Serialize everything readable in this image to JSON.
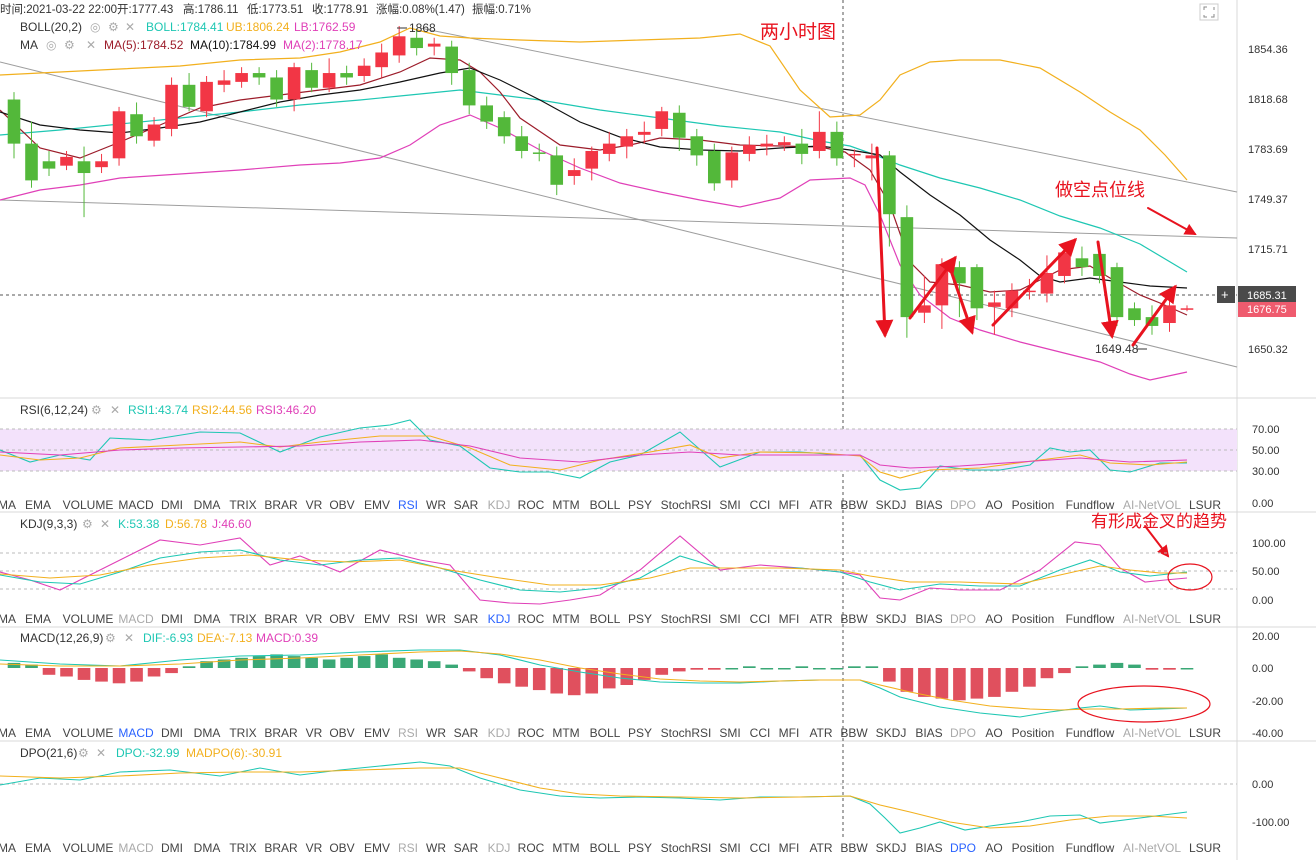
{
  "info_bar": {
    "time": "时间:2021-03-22 22:00",
    "open": "开:1777.43",
    "high": "高:1786.11",
    "low": "低:1773.51",
    "close": "收:1778.91",
    "change": "涨幅:0.08%(1.47)",
    "amplitude": "振幅:0.71%"
  },
  "colors": {
    "up": "#f23645",
    "down": "#53b83a",
    "boll_mid": "#1ec7b3",
    "boll_upper": "#f2b01e",
    "boll_lower": "#e040b8",
    "ma5": "#9c1c2a",
    "ma10": "#111111",
    "rsi_band": "#f3e2fb",
    "price_tag": "#ef5b6e",
    "annot": "#e8131f"
  },
  "main_panel": {
    "boll_title": "BOLL(20,2)",
    "boll_mid": "BOLL:1784.41",
    "boll_up": "UB:1806.24",
    "boll_low": "LB:1762.59",
    "ma_title": "MA",
    "ma5": "MA(5):1784.52",
    "ma10": "MA(10):1784.99",
    "ma2": "MA(2):1778.17",
    "high_label": "1868",
    "low_label": "1649.48",
    "price_axis": [
      "1854.36",
      "1818.68",
      "1783.69",
      "1749.37",
      "1715.71",
      "1650.32"
    ],
    "crosshair_price": "1685.31",
    "last_price": "1676.75",
    "annotation_title": "两小时图",
    "annotation_short": "做空点位线",
    "annotation_kdj": "有形成金叉的趋势"
  },
  "rsi_panel": {
    "title": "RSI(6,12,24)",
    "r1": "RSI1:43.74",
    "r2": "RSI2:44.56",
    "r3": "RSI3:46.20",
    "axis": [
      "70.00",
      "50.00",
      "30.00",
      "0.00"
    ]
  },
  "kdj_panel": {
    "title": "KDJ(9,3,3)",
    "k": "K:53.38",
    "d": "D:56.78",
    "j": "J:46.60",
    "axis": [
      "100.00",
      "50.00",
      "0.00"
    ]
  },
  "macd_panel": {
    "title": "MACD(12,26,9)",
    "dif": "DIF:-6.93",
    "dea": "DEA:-7.13",
    "macd": "MACD:0.39",
    "axis": [
      "20.00",
      "0.00",
      "-20.00",
      "-40.00"
    ]
  },
  "dpo_panel": {
    "title": "DPO(21,6)",
    "dpo": "DPO:-32.99",
    "madpo": "MADPO(6):-30.91",
    "axis": [
      "0.00",
      "-100.00"
    ]
  },
  "indicator_tabs": [
    "MA",
    "EMA",
    "VOLUME",
    "MACD",
    "DMI",
    "DMA",
    "TRIX",
    "BRAR",
    "VR",
    "OBV",
    "EMV",
    "RSI",
    "WR",
    "SAR",
    "KDJ",
    "ROC",
    "MTM",
    "BOLL",
    "PSY",
    "StochRSI",
    "SMI",
    "CCI",
    "MFI",
    "ATR",
    "BBW",
    "SKDJ",
    "BIAS",
    "DPO",
    "AO",
    "Position",
    "Fundflow",
    "AI-NetVOL",
    "LSUR"
  ],
  "tab_rows": [
    {
      "active": "RSI",
      "dim": [
        "KDJ",
        "DPO",
        "AI-NetVOL"
      ]
    },
    {
      "active": "KDJ",
      "dim": [
        "MACD",
        "DPO",
        "AI-NetVOL"
      ]
    },
    {
      "active": "MACD",
      "dim": [
        "RSI",
        "KDJ",
        "DPO",
        "AI-NetVOL"
      ]
    },
    {
      "active": "DPO",
      "dim": [
        "MACD",
        "RSI",
        "KDJ",
        "AI-NetVOL"
      ]
    }
  ],
  "chart_data": {
    "type": "candlestick",
    "title": "两小时图",
    "y_axis_ticks": [
      1854.36,
      1818.68,
      1783.69,
      1749.37,
      1715.71,
      1650.32
    ],
    "ylim": [
      1633,
      1888
    ],
    "candles": [
      [
        1820,
        1790,
        1825,
        1780
      ],
      [
        1790,
        1765,
        1805,
        1760
      ],
      [
        1778,
        1773,
        1785,
        1768
      ],
      [
        1775,
        1781,
        1785,
        1772
      ],
      [
        1778,
        1770,
        1788,
        1740
      ],
      [
        1774,
        1778,
        1783,
        1770
      ],
      [
        1780,
        1812,
        1815,
        1775
      ],
      [
        1810,
        1795,
        1818,
        1790
      ],
      [
        1792,
        1803,
        1808,
        1788
      ],
      [
        1800,
        1830,
        1835,
        1795
      ],
      [
        1830,
        1815,
        1838,
        1812
      ],
      [
        1812,
        1832,
        1836,
        1808
      ],
      [
        1830,
        1833,
        1840,
        1825
      ],
      [
        1832,
        1838,
        1842,
        1828
      ],
      [
        1838,
        1835,
        1842,
        1830
      ],
      [
        1835,
        1820,
        1840,
        1815
      ],
      [
        1820,
        1842,
        1845,
        1812
      ],
      [
        1840,
        1828,
        1845,
        1825
      ],
      [
        1828,
        1838,
        1848,
        1825
      ],
      [
        1838,
        1835,
        1843,
        1830
      ],
      [
        1836,
        1843,
        1848,
        1832
      ],
      [
        1842,
        1852,
        1858,
        1835
      ],
      [
        1850,
        1863,
        1870,
        1845
      ],
      [
        1862,
        1855,
        1868,
        1850
      ],
      [
        1856,
        1858,
        1862,
        1850
      ],
      [
        1856,
        1838,
        1860,
        1830
      ],
      [
        1840,
        1816,
        1845,
        1810
      ],
      [
        1816,
        1805,
        1822,
        1800
      ],
      [
        1808,
        1795,
        1812,
        1790
      ],
      [
        1795,
        1785,
        1802,
        1780
      ],
      [
        1784,
        1783,
        1790,
        1778
      ],
      [
        1782,
        1762,
        1788,
        1755
      ],
      [
        1768,
        1772,
        1780,
        1762
      ],
      [
        1773,
        1785,
        1788,
        1765
      ],
      [
        1783,
        1790,
        1798,
        1778
      ],
      [
        1788,
        1795,
        1800,
        1780
      ],
      [
        1796,
        1798,
        1805,
        1790
      ],
      [
        1800,
        1812,
        1815,
        1795
      ],
      [
        1811,
        1794,
        1816,
        1785
      ],
      [
        1795,
        1782,
        1800,
        1775
      ],
      [
        1785,
        1763,
        1790,
        1758
      ],
      [
        1765,
        1784,
        1788,
        1760
      ],
      [
        1783,
        1789,
        1795,
        1778
      ],
      [
        1788,
        1790,
        1796,
        1782
      ],
      [
        1789,
        1791,
        1795,
        1785
      ],
      [
        1790,
        1783,
        1800,
        1776
      ],
      [
        1785,
        1798,
        1812,
        1780
      ],
      [
        1798,
        1780,
        1805,
        1775
      ],
      [
        1782,
        1783,
        1786,
        1774
      ],
      [
        1780,
        1782,
        1790,
        1765
      ],
      [
        1782,
        1742,
        1785,
        1720
      ],
      [
        1740,
        1672,
        1748,
        1658
      ],
      [
        1675,
        1680,
        1700,
        1668
      ],
      [
        1680,
        1708,
        1712,
        1664
      ],
      [
        1706,
        1695,
        1710,
        1672
      ],
      [
        1706,
        1678,
        1708,
        1670
      ],
      [
        1679,
        1682,
        1690,
        1660
      ],
      [
        1678,
        1690,
        1695,
        1672
      ],
      [
        1690,
        1690,
        1698,
        1684
      ],
      [
        1688,
        1702,
        1714,
        1682
      ],
      [
        1700,
        1716,
        1722,
        1695
      ],
      [
        1712,
        1706,
        1720,
        1700
      ],
      [
        1715,
        1700,
        1720,
        1695
      ],
      [
        1706,
        1672,
        1709,
        1666
      ],
      [
        1678,
        1670,
        1682,
        1666
      ],
      [
        1672,
        1666,
        1680,
        1660
      ],
      [
        1668,
        1680,
        1684,
        1662
      ],
      [
        1678,
        1678,
        1680,
        1676
      ]
    ]
  }
}
